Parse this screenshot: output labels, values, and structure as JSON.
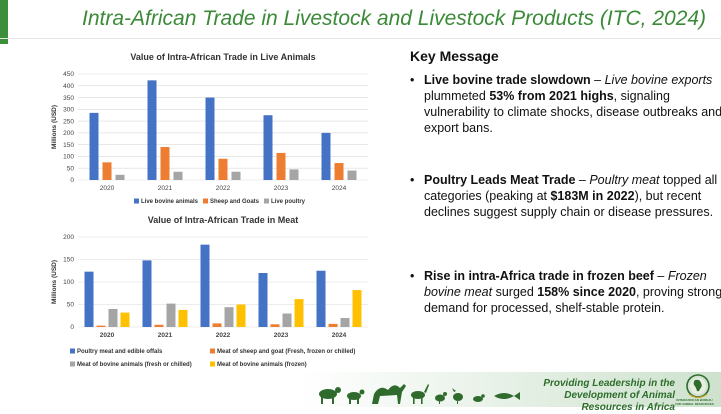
{
  "title": "Intra-African Trade in Livestock and Livestock Products (ITC, 2024)",
  "key_message": {
    "heading": "Key Message",
    "bullets": [
      {
        "lead": "Live bovine trade slowdown",
        "dash": " – ",
        "italic": "Live bovine exports",
        "mid": " plummeted ",
        "strong": "53% from 2021 highs",
        "tail": ", signaling vulnerability to climate shocks, disease outbreaks and export bans."
      },
      {
        "lead": "Poultry Leads Meat Trade",
        "dash": " – ",
        "italic": "Poultry meat",
        "mid": " topped all categories (peaking at ",
        "strong": "$183M in 2022",
        "tail": "), but recent declines suggest supply chain or disease pressures."
      },
      {
        "lead": "Rise in intra-Africa trade in frozen beef",
        "dash": " – ",
        "italic": "Frozen bovine meat",
        "mid": " surged ",
        "strong": "158% since 2020",
        "tail": ", proving strong demand for processed, shelf-stable protein."
      }
    ]
  },
  "footer": {
    "tagline_line1": "Providing Leadership in the",
    "tagline_line2": "Development of Animal Resources in Africa",
    "logo_line1": "INTERAFRICAN BUREAU",
    "logo_line2": "FOR ANIMAL RESOURCES"
  },
  "colors": {
    "brand_green": "#3a8a37",
    "series_blue": "#4472c4",
    "series_orange": "#ed7d31",
    "series_gray": "#a5a5a5",
    "series_yellow": "#ffc000"
  },
  "chart_data": [
    {
      "type": "bar",
      "title": "Value of Intra-African Trade in Live Animals",
      "xlabel": "",
      "ylabel": "Millions (USD)",
      "ylim": [
        0,
        450
      ],
      "yticks": [
        0,
        50,
        100,
        150,
        200,
        250,
        300,
        350,
        400,
        450
      ],
      "categories": [
        "2020",
        "2021",
        "2022",
        "2023",
        "2024"
      ],
      "legend": "bottom",
      "grid": true,
      "series": [
        {
          "name": "Live bovine animals",
          "color": "#4472c4",
          "values": [
            285,
            423,
            350,
            275,
            200
          ]
        },
        {
          "name": "Sheep and Goats",
          "color": "#ed7d31",
          "values": [
            75,
            140,
            90,
            115,
            72
          ]
        },
        {
          "name": "Live poultry",
          "color": "#a5a5a5",
          "values": [
            22,
            35,
            35,
            45,
            40
          ]
        }
      ]
    },
    {
      "type": "bar",
      "title": "Value of Intra-African Trade in Meat",
      "xlabel": "",
      "ylabel": "Millions (USD)",
      "ylim": [
        0,
        200
      ],
      "yticks": [
        0,
        50,
        100,
        150,
        200
      ],
      "categories": [
        "2020",
        "2021",
        "2022",
        "2023",
        "2024"
      ],
      "legend": "bottom",
      "grid": true,
      "series": [
        {
          "name": "Poultry meat and edible offals",
          "color": "#4472c4",
          "values": [
            123,
            148,
            183,
            120,
            125
          ]
        },
        {
          "name": "Meat of sheep and goat (Fresh, frozen or chilled)",
          "color": "#ed7d31",
          "values": [
            3,
            5,
            8,
            6,
            7
          ]
        },
        {
          "name": "Meat of bovine animals (fresh or chilled)",
          "color": "#a5a5a5",
          "values": [
            40,
            52,
            44,
            30,
            20
          ]
        },
        {
          "name": "Meat of bovine animals (frozen)",
          "color": "#ffc000",
          "values": [
            32,
            38,
            50,
            62,
            82
          ]
        }
      ]
    }
  ]
}
